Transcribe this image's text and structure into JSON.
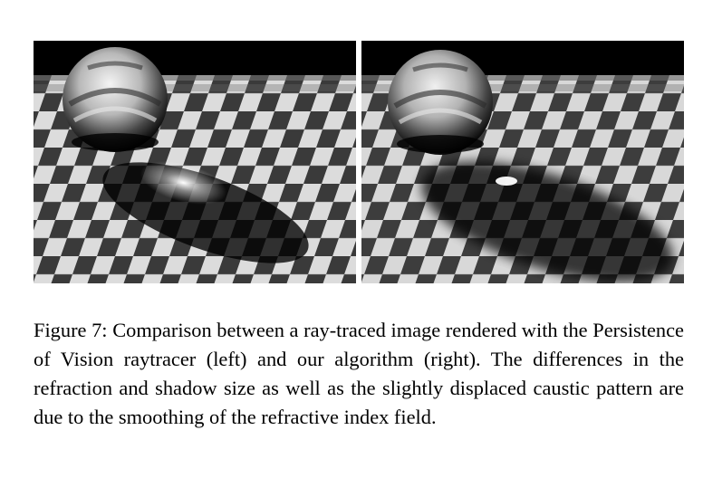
{
  "figure": {
    "caption_label": "Figure 7:",
    "caption_text": "Comparison between a ray-traced image rendered with the Persistence of Vision raytracer (left) and our algorithm (right). The differences in the refraction and shadow size as well as the slightly displaced caustic pattern are due to the smoothing of the refractive index field.",
    "panels": [
      {
        "name": "raytraced-panel"
      },
      {
        "name": "algorithm-panel"
      }
    ]
  }
}
